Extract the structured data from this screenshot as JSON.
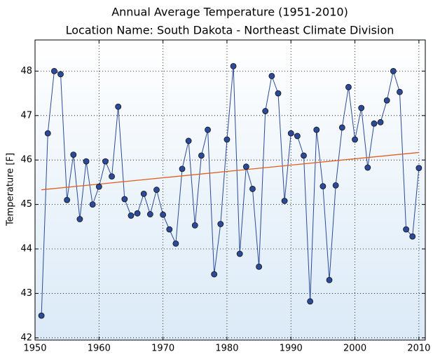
{
  "chart_data": {
    "type": "line",
    "title": "Annual Average Temperature (1951-2010)",
    "subtitle": "Location Name: South Dakota - Northeast Climate Division",
    "y_label": "Temperature [F]",
    "x": [
      1951,
      1952,
      1953,
      1954,
      1955,
      1956,
      1957,
      1958,
      1959,
      1960,
      1961,
      1962,
      1963,
      1964,
      1965,
      1966,
      1967,
      1968,
      1969,
      1970,
      1971,
      1972,
      1973,
      1974,
      1975,
      1976,
      1977,
      1978,
      1979,
      1980,
      1981,
      1982,
      1983,
      1984,
      1985,
      1986,
      1987,
      1988,
      1989,
      1990,
      1991,
      1992,
      1993,
      1994,
      1995,
      1996,
      1997,
      1998,
      1999,
      2000,
      2001,
      2002,
      2003,
      2004,
      2005,
      2006,
      2007,
      2008,
      2009,
      2010
    ],
    "series": [
      {
        "color": "#2b4a9a",
        "values": [
          42.5,
          46.6,
          48.0,
          47.93,
          45.1,
          46.12,
          44.67,
          45.97,
          45.0,
          45.4,
          45.97,
          45.63,
          47.2,
          45.12,
          44.75,
          44.8,
          45.24,
          44.78,
          45.33,
          44.77,
          44.44,
          44.12,
          45.8,
          46.43,
          44.53,
          46.1,
          46.68,
          43.43,
          44.56,
          46.46,
          48.11,
          43.89,
          45.85,
          45.35,
          43.6,
          47.1,
          47.89,
          47.5,
          45.08,
          46.6,
          46.54,
          46.1,
          42.82,
          46.68,
          45.41,
          43.3,
          45.43,
          46.73,
          47.64,
          46.46,
          47.17,
          45.83,
          46.82,
          46.85,
          47.34,
          48.0,
          47.53,
          44.44,
          44.28,
          45.82
        ]
      }
    ],
    "trend": {
      "x": [
        1951,
        2010
      ],
      "values": [
        45.33,
        46.17
      ],
      "color": "#e06020"
    },
    "xlim": [
      1950,
      2011
    ],
    "ylim": [
      41.95,
      48.7
    ],
    "xticks": [
      1950,
      1960,
      1970,
      1980,
      1990,
      2000,
      2010
    ],
    "yticks": [
      42,
      43,
      44,
      45,
      46,
      47,
      48
    ],
    "grid": true
  }
}
